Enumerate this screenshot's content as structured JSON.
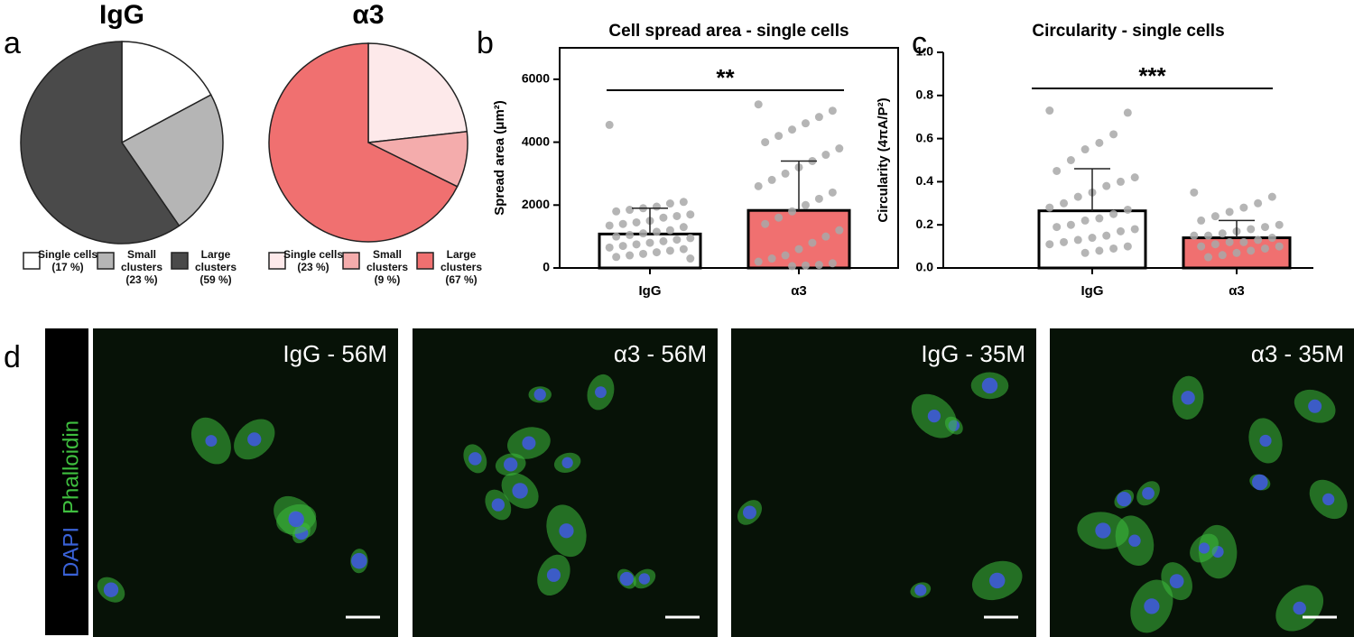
{
  "panel_letters": [
    "a",
    "b",
    "c",
    "d"
  ],
  "chart_data": [
    {
      "type": "pie",
      "title": "IgG",
      "categories": [
        "Single cells",
        "Small clusters",
        "Large clusters"
      ],
      "values": [
        17,
        23,
        59
      ],
      "value_labels": [
        "(17 %)",
        "(23 %)",
        "(59 %)"
      ],
      "colors": [
        "#ffffff",
        "#b5b5b5",
        "#4a4a4a"
      ]
    },
    {
      "type": "pie",
      "title": "α3",
      "categories": [
        "Single cells",
        "Small clusters",
        "Large clusters"
      ],
      "values": [
        23,
        9,
        67
      ],
      "value_labels": [
        "(23 %)",
        "(9 %)",
        "(67 %)"
      ],
      "colors": [
        "#fde9ea",
        "#f4acac",
        "#f07070"
      ]
    },
    {
      "type": "bar",
      "title": "Cell spread area - single cells",
      "ylabel": "Spread area (μm²)",
      "categories": [
        "IgG",
        "α3"
      ],
      "values": [
        1080,
        1830
      ],
      "errors": [
        820,
        1570
      ],
      "colors": [
        "#ffffff",
        "#f07070"
      ],
      "significance": "**",
      "points": [
        [
          4550,
          2100,
          2050,
          1950,
          1900,
          1850,
          1800,
          1700,
          1650,
          1600,
          1500,
          1450,
          1400,
          1350,
          1300,
          1200,
          1150,
          1100,
          1050,
          1000,
          950,
          900,
          850,
          800,
          750,
          700,
          650,
          600,
          550,
          500,
          450,
          400,
          350,
          300
        ],
        [
          5200,
          5000,
          4800,
          4600,
          4400,
          4200,
          4000,
          3800,
          3600,
          3400,
          3200,
          3000,
          2800,
          2600,
          2400,
          2200,
          2000,
          1800,
          1600,
          1400,
          1200,
          1000,
          800,
          600,
          400,
          300,
          200,
          150,
          100,
          80,
          60
        ]
      ],
      "ylim": [
        0,
        7000
      ],
      "yticks": [
        0,
        2000,
        4000,
        6000
      ]
    },
    {
      "type": "bar",
      "title": "Circularity - single cells",
      "ylabel": "Circularity (4πA/P²)",
      "categories": [
        "IgG",
        "α3"
      ],
      "values": [
        0.265,
        0.14
      ],
      "errors": [
        0.195,
        0.08
      ],
      "colors": [
        "#ffffff",
        "#f07070"
      ],
      "significance": "***",
      "points": [
        [
          0.73,
          0.72,
          0.62,
          0.58,
          0.55,
          0.5,
          0.45,
          0.42,
          0.4,
          0.38,
          0.35,
          0.33,
          0.3,
          0.28,
          0.27,
          0.25,
          0.23,
          0.22,
          0.2,
          0.19,
          0.18,
          0.17,
          0.15,
          0.14,
          0.13,
          0.12,
          0.11,
          0.1,
          0.09,
          0.08,
          0.07
        ],
        [
          0.35,
          0.33,
          0.3,
          0.28,
          0.26,
          0.24,
          0.22,
          0.2,
          0.19,
          0.18,
          0.17,
          0.16,
          0.15,
          0.15,
          0.14,
          0.13,
          0.12,
          0.12,
          0.11,
          0.1,
          0.1,
          0.09,
          0.08,
          0.07,
          0.06,
          0.05
        ]
      ],
      "ylim": [
        0,
        1.0
      ],
      "yticks": [
        {
          "value": 0,
          "label": "0.0"
        },
        {
          "value": 0.2,
          "label": "0.2"
        },
        {
          "value": 0.4,
          "label": "0.4"
        },
        {
          "value": 0.6,
          "label": "0.6"
        },
        {
          "value": 0.8,
          "label": "0.8"
        },
        {
          "value": 1.0,
          "label": "1.0"
        }
      ]
    }
  ],
  "stain_labels": [
    "DAPI",
    "Phalloidin"
  ],
  "micrographs": [
    "IgG - 56M",
    "α3 - 56M",
    "IgG - 35M",
    "α3 - 35M"
  ]
}
